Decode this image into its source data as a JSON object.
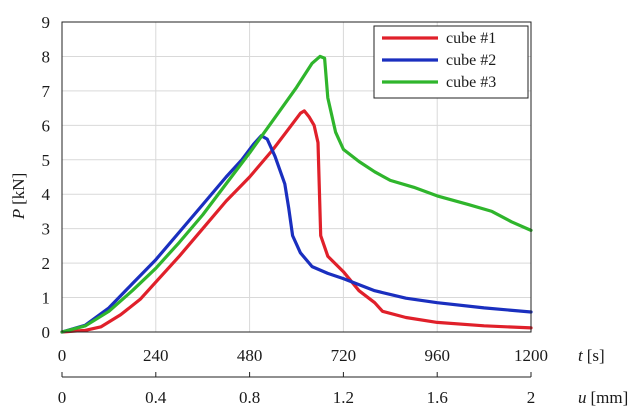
{
  "chart_data": {
    "type": "line",
    "ylabel_var": "P",
    "ylabel_unit": "[kN]",
    "xlabel_var": "t",
    "xlabel_unit": "[s]",
    "x2label_var": "u",
    "x2label_unit": "[mm]",
    "xlim": [
      0,
      1200
    ],
    "ylim": [
      0,
      9
    ],
    "x_ticks": [
      "0",
      "240",
      "480",
      "720",
      "960",
      "1200"
    ],
    "x2_ticks": [
      "0",
      "0.4",
      "0.8",
      "1.2",
      "1.6",
      "2"
    ],
    "y_ticks": [
      "0",
      "1",
      "2",
      "3",
      "4",
      "5",
      "6",
      "7",
      "8",
      "9"
    ],
    "grid": true,
    "legend_position": "top-right",
    "series": [
      {
        "name": "cube #1",
        "color": "#e0202a",
        "points": [
          [
            0,
            0
          ],
          [
            60,
            0.05
          ],
          [
            100,
            0.15
          ],
          [
            150,
            0.5
          ],
          [
            200,
            0.95
          ],
          [
            240,
            1.45
          ],
          [
            300,
            2.2
          ],
          [
            360,
            3.0
          ],
          [
            420,
            3.8
          ],
          [
            480,
            4.5
          ],
          [
            540,
            5.3
          ],
          [
            580,
            5.9
          ],
          [
            610,
            6.35
          ],
          [
            620,
            6.42
          ],
          [
            632,
            6.25
          ],
          [
            645,
            6.0
          ],
          [
            655,
            5.5
          ],
          [
            662,
            2.8
          ],
          [
            680,
            2.2
          ],
          [
            720,
            1.75
          ],
          [
            760,
            1.2
          ],
          [
            800,
            0.85
          ],
          [
            820,
            0.6
          ],
          [
            880,
            0.42
          ],
          [
            960,
            0.28
          ],
          [
            1080,
            0.18
          ],
          [
            1200,
            0.12
          ]
        ]
      },
      {
        "name": "cube #2",
        "color": "#1a2fbf",
        "points": [
          [
            0,
            0
          ],
          [
            60,
            0.2
          ],
          [
            120,
            0.7
          ],
          [
            180,
            1.4
          ],
          [
            240,
            2.1
          ],
          [
            300,
            2.9
          ],
          [
            360,
            3.7
          ],
          [
            420,
            4.5
          ],
          [
            460,
            5.0
          ],
          [
            490,
            5.45
          ],
          [
            510,
            5.7
          ],
          [
            525,
            5.6
          ],
          [
            545,
            5.1
          ],
          [
            570,
            4.3
          ],
          [
            580,
            3.6
          ],
          [
            590,
            2.8
          ],
          [
            610,
            2.3
          ],
          [
            640,
            1.9
          ],
          [
            680,
            1.7
          ],
          [
            720,
            1.55
          ],
          [
            800,
            1.2
          ],
          [
            880,
            0.98
          ],
          [
            960,
            0.85
          ],
          [
            1080,
            0.7
          ],
          [
            1200,
            0.58
          ]
        ]
      },
      {
        "name": "cube #3",
        "color": "#2fb52c",
        "points": [
          [
            0,
            0
          ],
          [
            60,
            0.18
          ],
          [
            120,
            0.6
          ],
          [
            180,
            1.2
          ],
          [
            240,
            1.85
          ],
          [
            300,
            2.6
          ],
          [
            360,
            3.4
          ],
          [
            420,
            4.3
          ],
          [
            480,
            5.2
          ],
          [
            540,
            6.15
          ],
          [
            600,
            7.1
          ],
          [
            640,
            7.8
          ],
          [
            660,
            8.0
          ],
          [
            672,
            7.95
          ],
          [
            680,
            6.8
          ],
          [
            690,
            6.3
          ],
          [
            700,
            5.8
          ],
          [
            720,
            5.3
          ],
          [
            760,
            4.95
          ],
          [
            800,
            4.65
          ],
          [
            840,
            4.4
          ],
          [
            900,
            4.2
          ],
          [
            960,
            3.95
          ],
          [
            1040,
            3.7
          ],
          [
            1100,
            3.5
          ],
          [
            1150,
            3.2
          ],
          [
            1200,
            2.95
          ]
        ]
      }
    ]
  }
}
